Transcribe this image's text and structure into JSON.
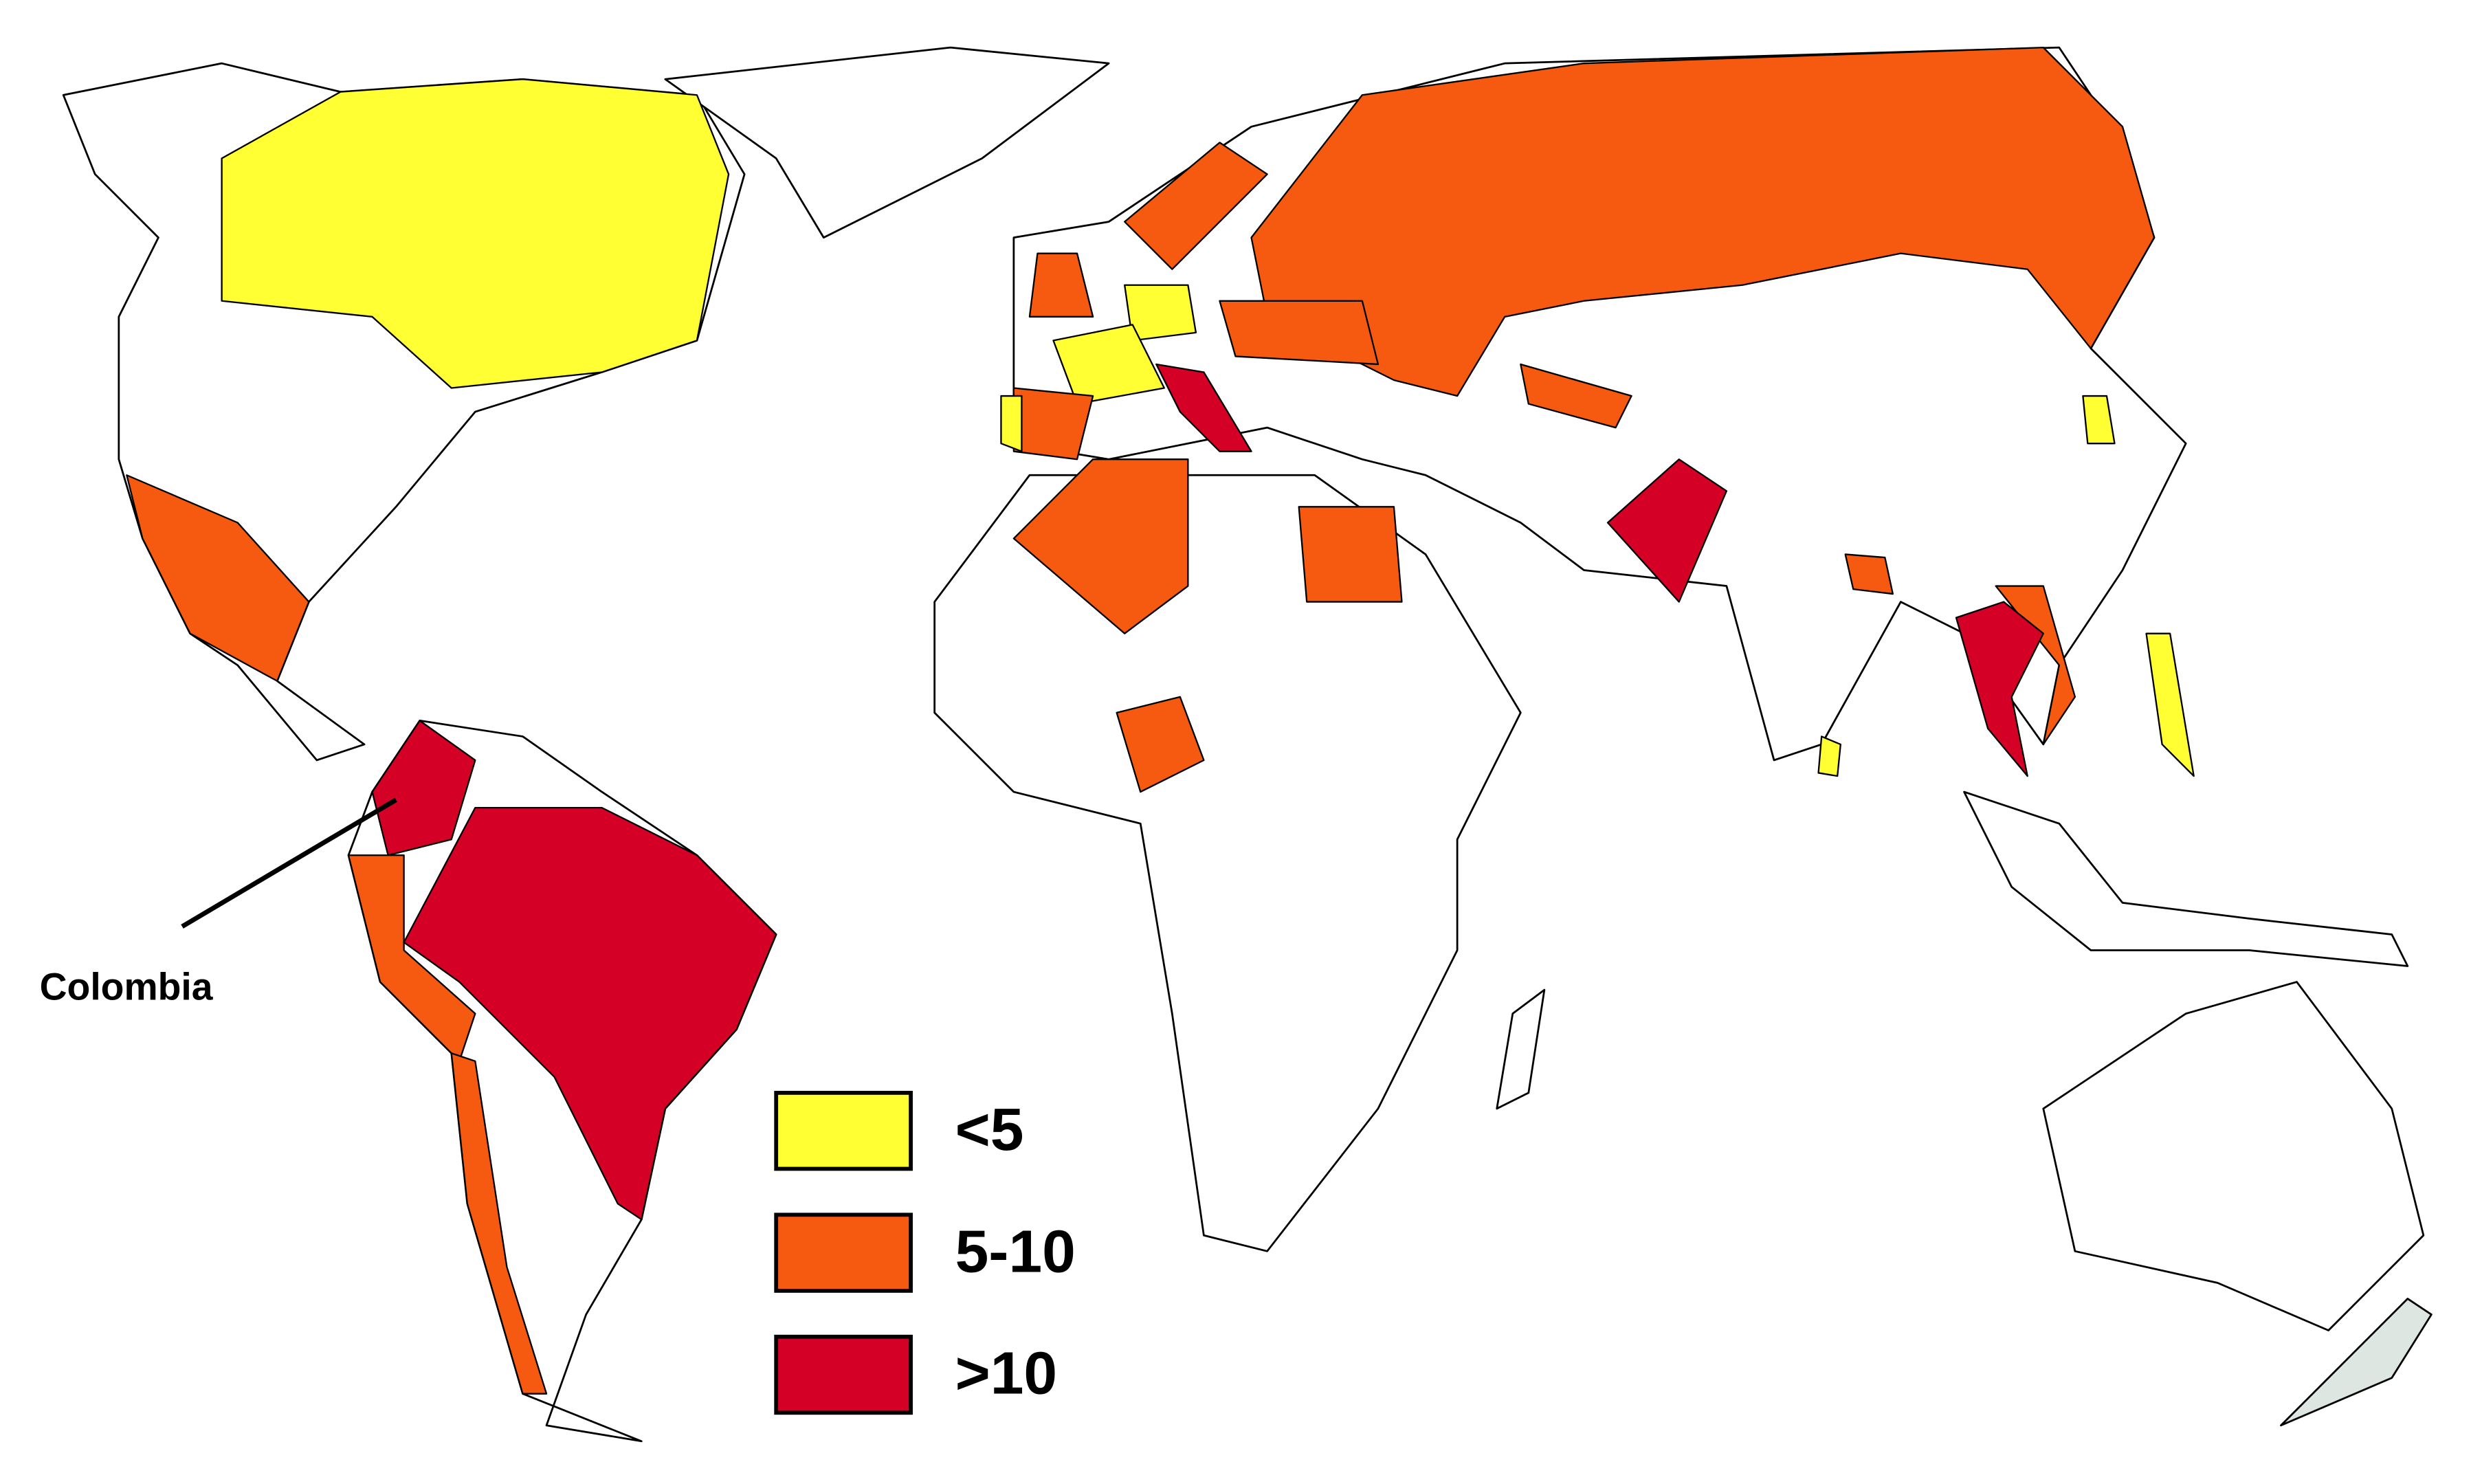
{
  "annotation": {
    "label": "Colombia"
  },
  "legend": {
    "items": [
      {
        "label": "<5",
        "color": "#ffff33"
      },
      {
        "label": "5-10",
        "color": "#f55a10"
      },
      {
        "label": ">10",
        "color": "#d50025"
      }
    ]
  }
}
